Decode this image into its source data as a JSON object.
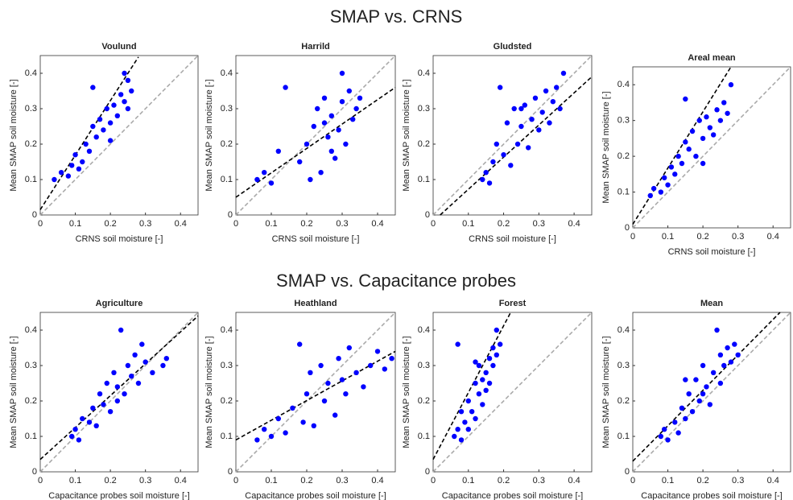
{
  "headings": [
    "SMAP vs. CRNS",
    "SMAP vs. Capacitance probes"
  ],
  "chart_data": [
    {
      "type": "scatter",
      "title": "Voulund",
      "xlabel": "CRNS soil moisture [-]",
      "ylabel": "Mean SMAP soil moisture [-]",
      "color": "#0000ff",
      "x": [
        0.04,
        0.06,
        0.08,
        0.09,
        0.1,
        0.12,
        0.13,
        0.14,
        0.15,
        0.15,
        0.16,
        0.17,
        0.18,
        0.19,
        0.2,
        0.21,
        0.22,
        0.23,
        0.24,
        0.25,
        0.25,
        0.26,
        0.24,
        0.11,
        0.2
      ],
      "y": [
        0.1,
        0.12,
        0.11,
        0.14,
        0.17,
        0.15,
        0.2,
        0.18,
        0.25,
        0.36,
        0.22,
        0.27,
        0.24,
        0.3,
        0.26,
        0.31,
        0.28,
        0.34,
        0.32,
        0.38,
        0.3,
        0.35,
        0.4,
        0.13,
        0.21
      ],
      "fit": {
        "color": "#000000",
        "x": [
          0,
          0.28
        ],
        "y": [
          0.015,
          0.446
        ]
      },
      "one_to_one": {
        "color": "#aaaaaa",
        "x": [
          0,
          0.45
        ],
        "y": [
          0,
          0.45
        ]
      },
      "xlim": [
        0,
        0.45
      ],
      "ylim": [
        0,
        0.45
      ],
      "xticks": [
        0,
        0.1,
        0.2,
        0.3,
        0.4
      ],
      "yticks": [
        0,
        0.1,
        0.2,
        0.3,
        0.4
      ]
    },
    {
      "type": "scatter",
      "title": "Harrild",
      "xlabel": "CRNS soil moisture [-]",
      "ylabel": "Mean SMAP soil moisture [-]",
      "color": "#0000ff",
      "x": [
        0.06,
        0.08,
        0.1,
        0.12,
        0.14,
        0.18,
        0.2,
        0.22,
        0.23,
        0.24,
        0.25,
        0.26,
        0.27,
        0.28,
        0.29,
        0.3,
        0.31,
        0.32,
        0.33,
        0.34,
        0.35,
        0.3,
        0.27,
        0.21,
        0.25
      ],
      "y": [
        0.1,
        0.12,
        0.09,
        0.18,
        0.36,
        0.15,
        0.2,
        0.25,
        0.3,
        0.12,
        0.33,
        0.22,
        0.28,
        0.16,
        0.24,
        0.32,
        0.2,
        0.35,
        0.27,
        0.3,
        0.33,
        0.4,
        0.18,
        0.1,
        0.26
      ],
      "fit": {
        "color": "#000000",
        "x": [
          0,
          0.45
        ],
        "y": [
          0.05,
          0.36
        ]
      },
      "one_to_one": {
        "color": "#aaaaaa",
        "x": [
          0,
          0.45
        ],
        "y": [
          0,
          0.45
        ]
      },
      "xlim": [
        0,
        0.45
      ],
      "ylim": [
        0,
        0.45
      ],
      "xticks": [
        0,
        0.1,
        0.2,
        0.3,
        0.4
      ],
      "yticks": [
        0,
        0.1,
        0.2,
        0.3,
        0.4
      ]
    },
    {
      "type": "scatter",
      "title": "Gludsted",
      "xlabel": "CRNS soil moisture [-]",
      "ylabel": "Mean SMAP soil moisture [-]",
      "color": "#0000ff",
      "x": [
        0.14,
        0.15,
        0.16,
        0.17,
        0.18,
        0.19,
        0.2,
        0.21,
        0.22,
        0.23,
        0.24,
        0.25,
        0.26,
        0.27,
        0.28,
        0.29,
        0.3,
        0.31,
        0.32,
        0.33,
        0.34,
        0.35,
        0.36,
        0.37,
        0.25
      ],
      "y": [
        0.1,
        0.12,
        0.09,
        0.15,
        0.2,
        0.36,
        0.17,
        0.26,
        0.14,
        0.3,
        0.2,
        0.25,
        0.31,
        0.19,
        0.27,
        0.33,
        0.24,
        0.29,
        0.35,
        0.26,
        0.32,
        0.36,
        0.3,
        0.4,
        0.3
      ],
      "fit": {
        "color": "#000000",
        "x": [
          0.02,
          0.45
        ],
        "y": [
          0,
          0.39
        ]
      },
      "one_to_one": {
        "color": "#aaaaaa",
        "x": [
          0,
          0.45
        ],
        "y": [
          0,
          0.45
        ]
      },
      "xlim": [
        0,
        0.45
      ],
      "ylim": [
        0,
        0.45
      ],
      "xticks": [
        0,
        0.1,
        0.2,
        0.3,
        0.4
      ],
      "yticks": [
        0,
        0.1,
        0.2,
        0.3,
        0.4
      ]
    },
    {
      "type": "scatter",
      "title": "Areal mean",
      "xlabel": "CRNS soil moisture [-]",
      "ylabel": "Mean SMAP soil moisture [-]",
      "color": "#0000ff",
      "x": [
        0.05,
        0.06,
        0.08,
        0.09,
        0.1,
        0.11,
        0.12,
        0.13,
        0.14,
        0.15,
        0.15,
        0.16,
        0.17,
        0.18,
        0.19,
        0.2,
        0.21,
        0.22,
        0.23,
        0.24,
        0.25,
        0.26,
        0.27,
        0.28,
        0.2
      ],
      "y": [
        0.09,
        0.11,
        0.1,
        0.14,
        0.12,
        0.17,
        0.15,
        0.2,
        0.18,
        0.36,
        0.24,
        0.22,
        0.27,
        0.2,
        0.3,
        0.25,
        0.31,
        0.28,
        0.26,
        0.33,
        0.3,
        0.35,
        0.32,
        0.4,
        0.18
      ],
      "fit": {
        "color": "#000000",
        "x": [
          0,
          0.28
        ],
        "y": [
          0.01,
          0.45
        ]
      },
      "one_to_one": {
        "color": "#aaaaaa",
        "x": [
          0,
          0.45
        ],
        "y": [
          0,
          0.45
        ]
      },
      "xlim": [
        0,
        0.45
      ],
      "ylim": [
        0,
        0.45
      ],
      "xticks": [
        0,
        0.1,
        0.2,
        0.3,
        0.4
      ],
      "yticks": [
        0,
        0.1,
        0.2,
        0.3,
        0.4
      ]
    },
    {
      "type": "scatter",
      "title": "Agriculture",
      "xlabel": "Capacitance probes soil moisture [-]",
      "ylabel": "Mean SMAP soil moisture [-]",
      "color": "#0000ff",
      "x": [
        0.09,
        0.1,
        0.11,
        0.12,
        0.14,
        0.15,
        0.16,
        0.17,
        0.18,
        0.19,
        0.2,
        0.21,
        0.22,
        0.23,
        0.24,
        0.25,
        0.26,
        0.27,
        0.28,
        0.29,
        0.3,
        0.32,
        0.35,
        0.36,
        0.22
      ],
      "y": [
        0.1,
        0.12,
        0.09,
        0.15,
        0.14,
        0.18,
        0.13,
        0.22,
        0.19,
        0.25,
        0.17,
        0.28,
        0.24,
        0.4,
        0.22,
        0.3,
        0.27,
        0.33,
        0.25,
        0.36,
        0.31,
        0.28,
        0.3,
        0.32,
        0.2
      ],
      "fit": {
        "color": "#000000",
        "x": [
          0,
          0.45
        ],
        "y": [
          0.035,
          0.44
        ]
      },
      "one_to_one": {
        "color": "#aaaaaa",
        "x": [
          0,
          0.45
        ],
        "y": [
          0,
          0.45
        ]
      },
      "xlim": [
        0,
        0.45
      ],
      "ylim": [
        0,
        0.45
      ],
      "xticks": [
        0,
        0.1,
        0.2,
        0.3,
        0.4
      ],
      "yticks": [
        0,
        0.1,
        0.2,
        0.3,
        0.4
      ]
    },
    {
      "type": "scatter",
      "title": "Heathland",
      "xlabel": "Capacitance probes soil moisture [-]",
      "ylabel": "Mean SMAP soil moisture [-]",
      "color": "#0000ff",
      "x": [
        0.06,
        0.08,
        0.1,
        0.12,
        0.14,
        0.16,
        0.18,
        0.19,
        0.2,
        0.21,
        0.22,
        0.24,
        0.25,
        0.26,
        0.28,
        0.29,
        0.3,
        0.31,
        0.32,
        0.34,
        0.36,
        0.38,
        0.4,
        0.42,
        0.44
      ],
      "y": [
        0.09,
        0.12,
        0.1,
        0.15,
        0.11,
        0.18,
        0.36,
        0.14,
        0.22,
        0.28,
        0.13,
        0.3,
        0.2,
        0.25,
        0.16,
        0.32,
        0.26,
        0.22,
        0.35,
        0.28,
        0.24,
        0.3,
        0.34,
        0.29,
        0.32
      ],
      "fit": {
        "color": "#000000",
        "x": [
          0,
          0.45
        ],
        "y": [
          0.09,
          0.34
        ]
      },
      "one_to_one": {
        "color": "#aaaaaa",
        "x": [
          0,
          0.45
        ],
        "y": [
          0,
          0.45
        ]
      },
      "xlim": [
        0,
        0.45
      ],
      "ylim": [
        0,
        0.45
      ],
      "xticks": [
        0,
        0.1,
        0.2,
        0.3,
        0.4
      ],
      "yticks": [
        0,
        0.1,
        0.2,
        0.3,
        0.4
      ]
    },
    {
      "type": "scatter",
      "title": "Forest",
      "xlabel": "Capacitance probes soil moisture [-]",
      "ylabel": "Mean SMAP soil moisture [-]",
      "color": "#0000ff",
      "x": [
        0.06,
        0.07,
        0.07,
        0.08,
        0.09,
        0.1,
        0.1,
        0.11,
        0.12,
        0.12,
        0.13,
        0.13,
        0.14,
        0.14,
        0.15,
        0.15,
        0.16,
        0.16,
        0.17,
        0.17,
        0.18,
        0.18,
        0.19,
        0.08,
        0.12
      ],
      "y": [
        0.1,
        0.12,
        0.36,
        0.09,
        0.14,
        0.2,
        0.12,
        0.17,
        0.25,
        0.15,
        0.22,
        0.3,
        0.19,
        0.26,
        0.28,
        0.23,
        0.32,
        0.25,
        0.3,
        0.35,
        0.4,
        0.33,
        0.36,
        0.17,
        0.31
      ],
      "fit": {
        "color": "#000000",
        "x": [
          0,
          0.22
        ],
        "y": [
          0.035,
          0.45
        ]
      },
      "one_to_one": {
        "color": "#aaaaaa",
        "x": [
          0,
          0.45
        ],
        "y": [
          0,
          0.45
        ]
      },
      "xlim": [
        0,
        0.45
      ],
      "ylim": [
        0,
        0.45
      ],
      "xticks": [
        0,
        0.1,
        0.2,
        0.3,
        0.4
      ],
      "yticks": [
        0,
        0.1,
        0.2,
        0.3,
        0.4
      ]
    },
    {
      "type": "scatter",
      "title": "Mean",
      "xlabel": "Capacitance probes soil moisture [-]",
      "ylabel": "Mean SMAP soil moisture [-]",
      "color": "#0000ff",
      "x": [
        0.08,
        0.09,
        0.1,
        0.12,
        0.13,
        0.14,
        0.15,
        0.16,
        0.17,
        0.18,
        0.19,
        0.2,
        0.21,
        0.22,
        0.23,
        0.24,
        0.25,
        0.25,
        0.26,
        0.27,
        0.28,
        0.29,
        0.3,
        0.2,
        0.15
      ],
      "y": [
        0.1,
        0.12,
        0.09,
        0.14,
        0.11,
        0.18,
        0.15,
        0.22,
        0.17,
        0.26,
        0.2,
        0.3,
        0.24,
        0.19,
        0.28,
        0.4,
        0.25,
        0.33,
        0.3,
        0.35,
        0.31,
        0.36,
        0.33,
        0.22,
        0.26
      ],
      "fit": {
        "color": "#000000",
        "x": [
          0,
          0.42
        ],
        "y": [
          0.03,
          0.45
        ]
      },
      "one_to_one": {
        "color": "#aaaaaa",
        "x": [
          0,
          0.45
        ],
        "y": [
          0,
          0.45
        ]
      },
      "xlim": [
        0,
        0.45
      ],
      "ylim": [
        0,
        0.45
      ],
      "xticks": [
        0,
        0.1,
        0.2,
        0.3,
        0.4
      ],
      "yticks": [
        0,
        0.1,
        0.2,
        0.3,
        0.4
      ]
    }
  ]
}
